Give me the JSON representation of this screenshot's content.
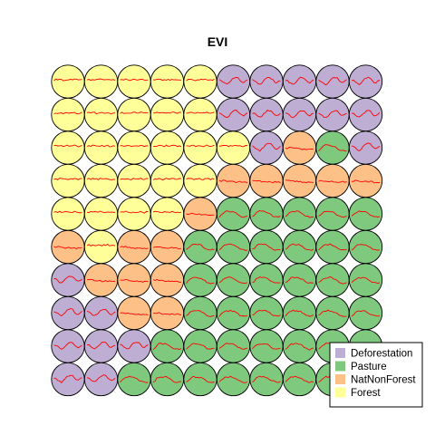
{
  "chart_data": {
    "type": "som-grid",
    "title": "EVI",
    "grid": {
      "rows": 10,
      "cols": 10
    },
    "classes": [
      {
        "name": "Deforestation",
        "color": "#BEAED4"
      },
      {
        "name": "Pasture",
        "color": "#7FC97F"
      },
      {
        "name": "NatNonForest",
        "color": "#FDC086"
      },
      {
        "name": "Forest",
        "color": "#FFFF99"
      }
    ],
    "profile_color": "#FF0000",
    "legend_position": "bottom-right",
    "cells": [
      [
        "Forest",
        "Forest",
        "Forest",
        "Forest",
        "Forest",
        "Deforestation",
        "Deforestation",
        "Deforestation",
        "Deforestation",
        "Deforestation"
      ],
      [
        "Forest",
        "Forest",
        "Forest",
        "Forest",
        "Forest",
        "Deforestation",
        "Deforestation",
        "Deforestation",
        "Deforestation",
        "Deforestation"
      ],
      [
        "Forest",
        "Forest",
        "Forest",
        "Forest",
        "Forest",
        "Forest",
        "Deforestation",
        "NatNonForest",
        "Pasture",
        "Deforestation"
      ],
      [
        "Forest",
        "Forest",
        "Forest",
        "Forest",
        "Forest",
        "NatNonForest",
        "NatNonForest",
        "NatNonForest",
        "NatNonForest",
        "NatNonForest"
      ],
      [
        "Forest",
        "Forest",
        "Forest",
        "Forest",
        "NatNonForest",
        "Pasture",
        "Pasture",
        "Pasture",
        "Pasture",
        "Pasture"
      ],
      [
        "NatNonForest",
        "Forest",
        "NatNonForest",
        "NatNonForest",
        "Pasture",
        "Pasture",
        "Pasture",
        "Pasture",
        "Pasture",
        "Pasture"
      ],
      [
        "Deforestation",
        "NatNonForest",
        "NatNonForest",
        "NatNonForest",
        "Pasture",
        "Pasture",
        "Pasture",
        "Pasture",
        "Pasture",
        "Pasture"
      ],
      [
        "Deforestation",
        "Deforestation",
        "NatNonForest",
        "NatNonForest",
        "Pasture",
        "Pasture",
        "Pasture",
        "Pasture",
        "Pasture",
        "Pasture"
      ],
      [
        "Deforestation",
        "Deforestation",
        "Deforestation",
        "Pasture",
        "Pasture",
        "Pasture",
        "Pasture",
        "Pasture",
        "Pasture",
        "Pasture"
      ],
      [
        "Deforestation",
        "Deforestation",
        "Pasture",
        "Pasture",
        "Pasture",
        "Pasture",
        "Pasture",
        "Pasture",
        "Pasture",
        "Pasture"
      ]
    ],
    "profiles": {
      "Forest": [
        0.55,
        0.57,
        0.56,
        0.58,
        0.57,
        0.55,
        0.56,
        0.58,
        0.57,
        0.56,
        0.57,
        0.58,
        0.56,
        0.55,
        0.56,
        0.57
      ],
      "NatNonForest": [
        0.48,
        0.47,
        0.49,
        0.48,
        0.46,
        0.45,
        0.44,
        0.45,
        0.43,
        0.42,
        0.43,
        0.42,
        0.41,
        0.42,
        0.4,
        0.41
      ],
      "Pasture": [
        0.35,
        0.42,
        0.52,
        0.58,
        0.6,
        0.59,
        0.6,
        0.58,
        0.55,
        0.5,
        0.44,
        0.38,
        0.35,
        0.33,
        0.34,
        0.36
      ],
      "Deforestation": [
        0.55,
        0.52,
        0.45,
        0.38,
        0.34,
        0.4,
        0.5,
        0.6,
        0.66,
        0.68,
        0.64,
        0.55,
        0.45,
        0.42,
        0.48,
        0.55
      ]
    }
  }
}
